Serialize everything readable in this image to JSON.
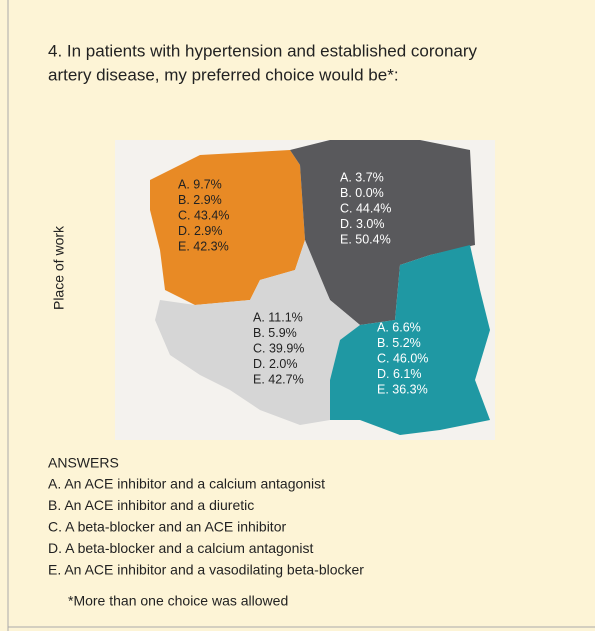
{
  "title_lines": [
    "4. In patients with hypertension and established coronary",
    "artery disease, my preferred choice would be*:"
  ],
  "axis_label": "Place of work",
  "regions": [
    {
      "lines": [
        "A. 9.7%",
        "B. 2.9%",
        "C. 43.4%",
        "D. 2.9%",
        "E. 42.3%"
      ]
    },
    {
      "lines": [
        "A. 3.7%",
        "B. 0.0%",
        "C. 44.4%",
        "D. 3.0%",
        "E. 50.4%"
      ]
    },
    {
      "lines": [
        "A. 11.1%",
        "B. 5.9%",
        "C. 39.9%",
        "D. 2.0%",
        "E. 42.7%"
      ]
    },
    {
      "lines": [
        "A. 6.6%",
        "B. 5.2%",
        "C. 46.0%",
        "D. 6.1%",
        "E. 36.3%"
      ]
    }
  ],
  "answers_header": "ANSWERS",
  "answers": [
    "A. An ACE inhibitor and a calcium antagonist",
    "B. An ACE inhibitor and a diuretic",
    "C. A beta-blocker and an ACE inhibitor",
    "D. A beta-blocker and a calcium antagonist",
    "E. An ACE inhibitor and a vasodilating beta-blocker"
  ],
  "footnote": "*More than one choice was allowed"
}
